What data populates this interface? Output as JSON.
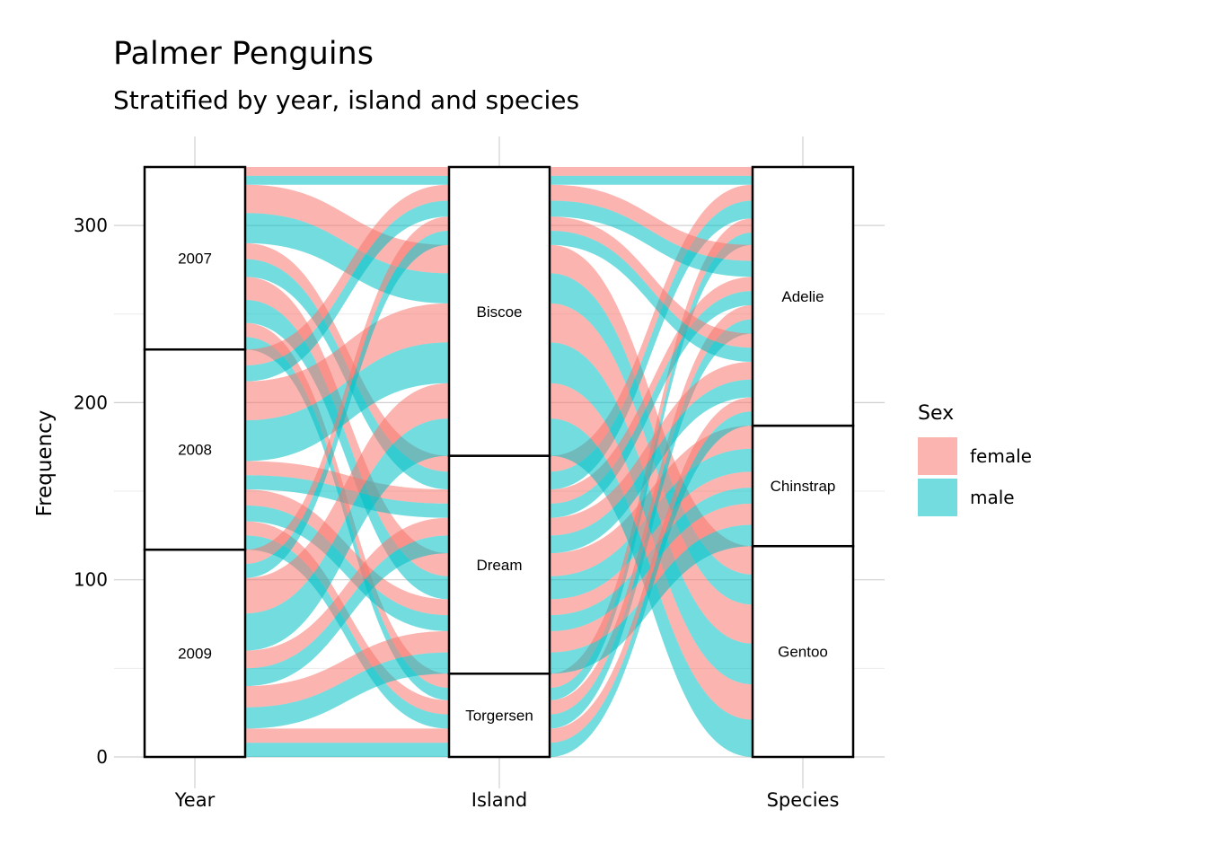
{
  "chart_data": {
    "type": "alluvial",
    "title": "Palmer Penguins",
    "subtitle": "Stratified by year, island and species",
    "ylabel": "Frequency",
    "ylim": [
      0,
      333
    ],
    "yticks": [
      0,
      100,
      200,
      300
    ],
    "grid": true,
    "legend": {
      "title": "Sex",
      "position": "right",
      "items": [
        {
          "label": "female",
          "color": "#F8766D"
        },
        {
          "label": "male",
          "color": "#00BFC4"
        }
      ]
    },
    "axes": [
      {
        "name": "Year",
        "strata": [
          "2009",
          "2008",
          "2007"
        ]
      },
      {
        "name": "Island",
        "strata": [
          "Torgersen",
          "Dream",
          "Biscoe"
        ]
      },
      {
        "name": "Species",
        "strata": [
          "Gentoo",
          "Chinstrap",
          "Adelie"
        ]
      }
    ],
    "flows": [
      {
        "year": "2007",
        "island": "Biscoe",
        "species": "Adelie",
        "sex": "female",
        "n": 5
      },
      {
        "year": "2007",
        "island": "Biscoe",
        "species": "Adelie",
        "sex": "male",
        "n": 5
      },
      {
        "year": "2007",
        "island": "Biscoe",
        "species": "Gentoo",
        "sex": "female",
        "n": 16
      },
      {
        "year": "2007",
        "island": "Biscoe",
        "species": "Gentoo",
        "sex": "male",
        "n": 17
      },
      {
        "year": "2007",
        "island": "Dream",
        "species": "Adelie",
        "sex": "female",
        "n": 9
      },
      {
        "year": "2007",
        "island": "Dream",
        "species": "Adelie",
        "sex": "male",
        "n": 10
      },
      {
        "year": "2007",
        "island": "Dream",
        "species": "Chinstrap",
        "sex": "female",
        "n": 13
      },
      {
        "year": "2007",
        "island": "Dream",
        "species": "Chinstrap",
        "sex": "male",
        "n": 13
      },
      {
        "year": "2007",
        "island": "Torgersen",
        "species": "Adelie",
        "sex": "female",
        "n": 8
      },
      {
        "year": "2007",
        "island": "Torgersen",
        "species": "Adelie",
        "sex": "male",
        "n": 7
      },
      {
        "year": "2008",
        "island": "Biscoe",
        "species": "Adelie",
        "sex": "female",
        "n": 9
      },
      {
        "year": "2008",
        "island": "Biscoe",
        "species": "Adelie",
        "sex": "male",
        "n": 9
      },
      {
        "year": "2008",
        "island": "Biscoe",
        "species": "Gentoo",
        "sex": "female",
        "n": 22
      },
      {
        "year": "2008",
        "island": "Biscoe",
        "species": "Gentoo",
        "sex": "male",
        "n": 23
      },
      {
        "year": "2008",
        "island": "Dream",
        "species": "Adelie",
        "sex": "female",
        "n": 8
      },
      {
        "year": "2008",
        "island": "Dream",
        "species": "Adelie",
        "sex": "male",
        "n": 8
      },
      {
        "year": "2008",
        "island": "Dream",
        "species": "Chinstrap",
        "sex": "female",
        "n": 9
      },
      {
        "year": "2008",
        "island": "Dream",
        "species": "Chinstrap",
        "sex": "male",
        "n": 9
      },
      {
        "year": "2008",
        "island": "Torgersen",
        "species": "Adelie",
        "sex": "female",
        "n": 8
      },
      {
        "year": "2008",
        "island": "Torgersen",
        "species": "Adelie",
        "sex": "male",
        "n": 8
      },
      {
        "year": "2009",
        "island": "Biscoe",
        "species": "Adelie",
        "sex": "female",
        "n": 8
      },
      {
        "year": "2009",
        "island": "Biscoe",
        "species": "Adelie",
        "sex": "male",
        "n": 8
      },
      {
        "year": "2009",
        "island": "Biscoe",
        "species": "Gentoo",
        "sex": "female",
        "n": 20
      },
      {
        "year": "2009",
        "island": "Biscoe",
        "species": "Gentoo",
        "sex": "male",
        "n": 21
      },
      {
        "year": "2009",
        "island": "Dream",
        "species": "Adelie",
        "sex": "female",
        "n": 10
      },
      {
        "year": "2009",
        "island": "Dream",
        "species": "Adelie",
        "sex": "male",
        "n": 10
      },
      {
        "year": "2009",
        "island": "Dream",
        "species": "Chinstrap",
        "sex": "female",
        "n": 12
      },
      {
        "year": "2009",
        "island": "Dream",
        "species": "Chinstrap",
        "sex": "male",
        "n": 12
      },
      {
        "year": "2009",
        "island": "Torgersen",
        "species": "Adelie",
        "sex": "female",
        "n": 8
      },
      {
        "year": "2009",
        "island": "Torgersen",
        "species": "Adelie",
        "sex": "male",
        "n": 8
      }
    ]
  }
}
